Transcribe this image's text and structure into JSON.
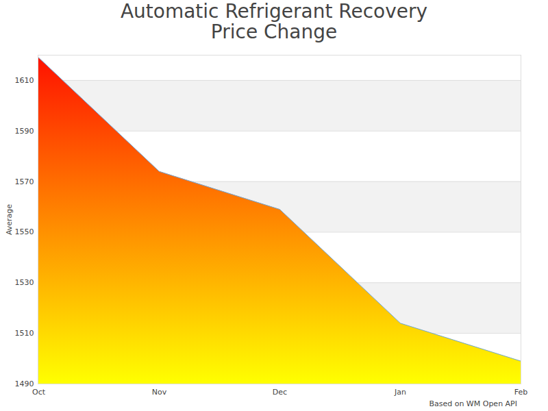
{
  "chart_data": {
    "type": "area",
    "title": "Automatic Refrigerant Recovery\nPrice Change",
    "y_label": "Average",
    "caption": "Based on WM Open API",
    "categories": [
      "Oct",
      "Nov",
      "Dec",
      "Jan",
      "Feb"
    ],
    "values": [
      1619,
      1574,
      1559,
      1514,
      1499
    ],
    "ylim": [
      1490,
      1620
    ],
    "yticks": [
      1490,
      1510,
      1530,
      1550,
      1570,
      1590,
      1610
    ],
    "grid": true
  }
}
